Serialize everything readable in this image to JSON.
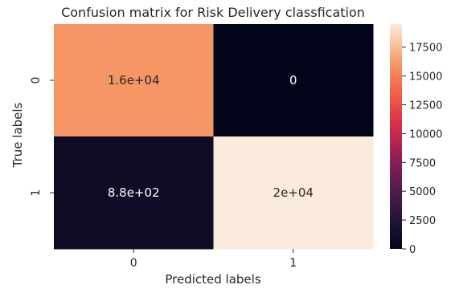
{
  "chart_data": {
    "type": "heatmap",
    "title": "Confusion matrix for Risk Delivery classfication",
    "xlabel": "Predicted labels",
    "ylabel": "True labels",
    "x_categories": [
      "0",
      "1"
    ],
    "y_categories": [
      "0",
      "1"
    ],
    "values": [
      [
        16000,
        0
      ],
      [
        880,
        20000
      ]
    ],
    "annotations": [
      [
        "1.6e+04",
        "0"
      ],
      [
        "8.8e+02",
        "2e+04"
      ]
    ],
    "colorbar": {
      "range": [
        0,
        19500
      ],
      "ticks": [
        0,
        2500,
        5000,
        7500,
        10000,
        12500,
        15000,
        17500
      ],
      "colormap": "rocket"
    }
  }
}
